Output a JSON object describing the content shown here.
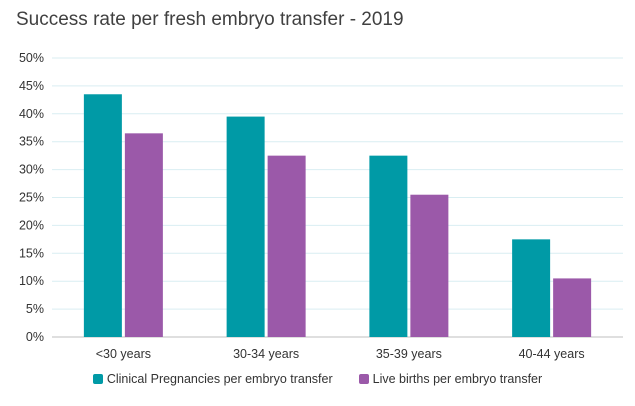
{
  "chart_data": {
    "type": "bar",
    "title": "Success rate per fresh embryo transfer - 2019",
    "xlabel": "",
    "ylabel": "",
    "categories": [
      "<30 years",
      "30-34 years",
      "35-39 years",
      "40-44 years"
    ],
    "series": [
      {
        "name": "Clinical Pregnancies per embryo transfer",
        "color": "#009aa6",
        "values": [
          43.5,
          39.5,
          32.5,
          17.5
        ]
      },
      {
        "name": "Live births per embryo transfer",
        "color": "#9b59a9",
        "values": [
          36.5,
          32.5,
          25.5,
          10.5
        ]
      }
    ],
    "ylim": [
      0,
      50
    ],
    "yticks": [
      "0%",
      "5%",
      "10%",
      "15%",
      "20%",
      "25%",
      "30%",
      "35%",
      "40%",
      "45%",
      "50%"
    ],
    "grid": true,
    "legend_position": "bottom"
  }
}
